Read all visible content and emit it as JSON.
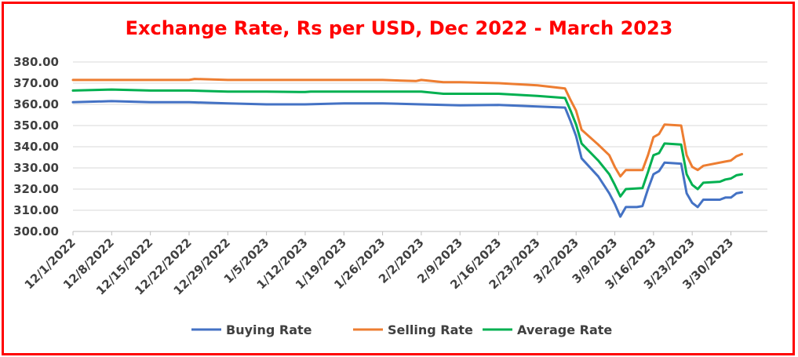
{
  "chart_data": {
    "type": "line",
    "title": "Exchange Rate, Rs per USD, Dec 2022 - March 2023",
    "xlabel": "",
    "ylabel": "",
    "ylim": [
      300,
      380
    ],
    "yticks": [
      "300.00",
      "310.00",
      "320.00",
      "330.00",
      "340.00",
      "350.00",
      "360.00",
      "370.00",
      "380.00"
    ],
    "xticks": [
      "12/1/2022",
      "12/8/2022",
      "12/15/2022",
      "12/22/2022",
      "12/29/2022",
      "1/5/2023",
      "1/12/2023",
      "1/19/2023",
      "1/26/2023",
      "2/2/2023",
      "2/9/2023",
      "2/16/2023",
      "2/23/2023",
      "3/2/2023",
      "3/9/2023",
      "3/16/2023",
      "3/23/2023",
      "3/30/2023"
    ],
    "grid": "horizontal",
    "legend": "bottom",
    "series": [
      {
        "name": "Buying Rate",
        "color": "#4472c4",
        "points": [
          [
            "12/1/2022",
            361.0
          ],
          [
            "12/8/2022",
            361.5
          ],
          [
            "12/15/2022",
            361.0
          ],
          [
            "12/22/2022",
            361.0
          ],
          [
            "12/29/2022",
            360.5
          ],
          [
            "1/5/2023",
            360.0
          ],
          [
            "1/12/2023",
            360.0
          ],
          [
            "1/19/2023",
            360.5
          ],
          [
            "1/26/2023",
            360.5
          ],
          [
            "2/2/2023",
            360.0
          ],
          [
            "2/9/2023",
            359.5
          ],
          [
            "2/16/2023",
            359.7
          ],
          [
            "2/23/2023",
            359.0
          ],
          [
            "2/28/2023",
            358.5
          ],
          [
            "3/1/2023",
            352.0
          ],
          [
            "3/2/2023",
            345.0
          ],
          [
            "3/3/2023",
            334.5
          ],
          [
            "3/6/2023",
            326.0
          ],
          [
            "3/8/2023",
            318.0
          ],
          [
            "3/9/2023",
            313.0
          ],
          [
            "3/10/2023",
            307.0
          ],
          [
            "3/11/2023",
            311.5
          ],
          [
            "3/13/2023",
            311.5
          ],
          [
            "3/14/2023",
            312.0
          ],
          [
            "3/15/2023",
            320.0
          ],
          [
            "3/16/2023",
            327.0
          ],
          [
            "3/17/2023",
            328.5
          ],
          [
            "3/18/2023",
            332.5
          ],
          [
            "3/21/2023",
            332.0
          ],
          [
            "3/22/2023",
            318.0
          ],
          [
            "3/23/2023",
            313.5
          ],
          [
            "3/24/2023",
            311.5
          ],
          [
            "3/25/2023",
            315.0
          ],
          [
            "3/28/2023",
            315.0
          ],
          [
            "3/29/2023",
            316.0
          ],
          [
            "3/30/2023",
            316.0
          ],
          [
            "3/31/2023",
            318.0
          ],
          [
            "4/1/2023",
            318.5
          ]
        ]
      },
      {
        "name": "Selling Rate",
        "color": "#ed7d31",
        "points": [
          [
            "12/1/2022",
            371.5
          ],
          [
            "12/8/2022",
            371.5
          ],
          [
            "12/15/2022",
            371.5
          ],
          [
            "12/22/2022",
            371.5
          ],
          [
            "12/23/2022",
            372.0
          ],
          [
            "12/29/2022",
            371.5
          ],
          [
            "1/5/2023",
            371.5
          ],
          [
            "1/12/2023",
            371.5
          ],
          [
            "1/19/2023",
            371.5
          ],
          [
            "1/26/2023",
            371.5
          ],
          [
            "2/1/2023",
            371.0
          ],
          [
            "2/2/2023",
            371.5
          ],
          [
            "2/6/2023",
            370.5
          ],
          [
            "2/9/2023",
            370.5
          ],
          [
            "2/16/2023",
            370.0
          ],
          [
            "2/23/2023",
            369.0
          ],
          [
            "2/28/2023",
            367.5
          ],
          [
            "3/1/2023",
            362.0
          ],
          [
            "3/2/2023",
            357.0
          ],
          [
            "3/3/2023",
            348.0
          ],
          [
            "3/6/2023",
            341.0
          ],
          [
            "3/8/2023",
            336.0
          ],
          [
            "3/9/2023",
            330.5
          ],
          [
            "3/10/2023",
            326.0
          ],
          [
            "3/11/2023",
            329.0
          ],
          [
            "3/14/2023",
            329.0
          ],
          [
            "3/15/2023",
            336.0
          ],
          [
            "3/16/2023",
            344.5
          ],
          [
            "3/17/2023",
            346.0
          ],
          [
            "3/18/2023",
            350.5
          ],
          [
            "3/21/2023",
            350.0
          ],
          [
            "3/22/2023",
            336.0
          ],
          [
            "3/23/2023",
            330.5
          ],
          [
            "3/24/2023",
            329.0
          ],
          [
            "3/25/2023",
            331.0
          ],
          [
            "3/29/2023",
            333.0
          ],
          [
            "3/30/2023",
            333.5
          ],
          [
            "3/31/2023",
            335.5
          ],
          [
            "4/1/2023",
            336.5
          ]
        ]
      },
      {
        "name": "Average Rate",
        "color": "#00b050",
        "points": [
          [
            "12/1/2022",
            366.5
          ],
          [
            "12/8/2022",
            367.0
          ],
          [
            "12/15/2022",
            366.5
          ],
          [
            "12/22/2022",
            366.5
          ],
          [
            "12/29/2022",
            366.0
          ],
          [
            "1/5/2023",
            366.0
          ],
          [
            "1/12/2023",
            365.8
          ],
          [
            "1/13/2023",
            366.0
          ],
          [
            "1/19/2023",
            366.0
          ],
          [
            "1/26/2023",
            366.0
          ],
          [
            "2/2/2023",
            366.0
          ],
          [
            "2/6/2023",
            365.0
          ],
          [
            "2/9/2023",
            365.0
          ],
          [
            "2/16/2023",
            365.0
          ],
          [
            "2/23/2023",
            364.0
          ],
          [
            "2/28/2023",
            363.0
          ],
          [
            "3/1/2023",
            357.0
          ],
          [
            "3/2/2023",
            350.5
          ],
          [
            "3/3/2023",
            341.5
          ],
          [
            "3/6/2023",
            333.5
          ],
          [
            "3/8/2023",
            327.0
          ],
          [
            "3/9/2023",
            322.0
          ],
          [
            "3/10/2023",
            316.5
          ],
          [
            "3/11/2023",
            320.0
          ],
          [
            "3/14/2023",
            320.5
          ],
          [
            "3/15/2023",
            328.0
          ],
          [
            "3/16/2023",
            336.0
          ],
          [
            "3/17/2023",
            337.0
          ],
          [
            "3/18/2023",
            341.5
          ],
          [
            "3/21/2023",
            341.0
          ],
          [
            "3/22/2023",
            327.0
          ],
          [
            "3/23/2023",
            322.0
          ],
          [
            "3/24/2023",
            320.0
          ],
          [
            "3/25/2023",
            323.0
          ],
          [
            "3/28/2023",
            323.5
          ],
          [
            "3/29/2023",
            324.5
          ],
          [
            "3/30/2023",
            325.0
          ],
          [
            "3/31/2023",
            326.5
          ],
          [
            "4/1/2023",
            327.0
          ]
        ]
      }
    ]
  }
}
